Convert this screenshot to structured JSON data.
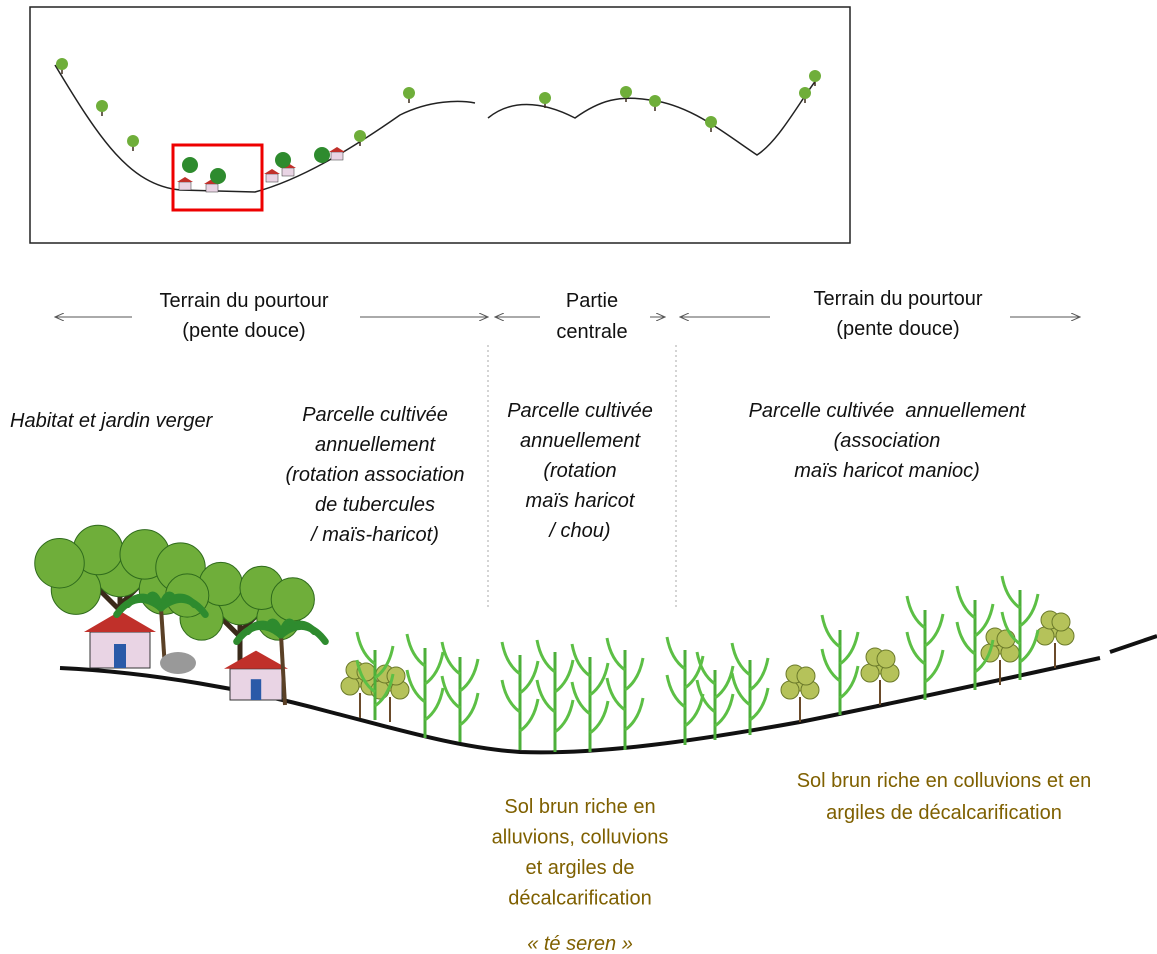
{
  "zones": [
    {
      "label": [
        "Terrain du pourtour",
        "(pente douce)"
      ]
    },
    {
      "label": [
        "Partie",
        "centrale"
      ]
    },
    {
      "label": [
        "Terrain du pourtour",
        "(pente douce)"
      ]
    }
  ],
  "land_uses": [
    {
      "lines": [
        "Habitat et jardin verger"
      ]
    },
    {
      "lines": [
        "Parcelle cultivée",
        "annuellement",
        "(rotation association",
        "de tubercules",
        "/ maïs-haricot)"
      ]
    },
    {
      "lines": [
        "Parcelle cultivée",
        "annuellement",
        "(rotation",
        "maïs haricot",
        "/ chou)"
      ]
    },
    {
      "lines": [
        "Parcelle cultivée  annuellement",
        "(association",
        "maïs haricot manioc)"
      ]
    }
  ],
  "soils": [
    {
      "lines": [
        "Sol brun riche en",
        "alluvions, colluvions",
        "et argiles de",
        "décalcarification"
      ],
      "local_name": "« té seren »"
    },
    {
      "lines": [
        "Sol brun riche en colluvions et en",
        "argiles de décalcarification"
      ]
    }
  ]
}
